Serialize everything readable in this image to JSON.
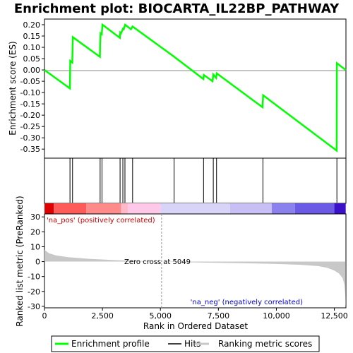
{
  "chart_data": {
    "type": "line",
    "title": "Enrichment plot: BIOCARTA_IL22BP_PATHWAY",
    "top_panel": {
      "ylabel": "Enrichment score (ES)",
      "ylim": [
        -0.39,
        0.225
      ],
      "yticks": [
        "0.20",
        "0.15",
        "0.10",
        "0.05",
        "0.00",
        "-0.05",
        "-0.10",
        "-0.15",
        "-0.20",
        "-0.25",
        "-0.30",
        "-0.35"
      ],
      "ytick_values": [
        0.2,
        0.15,
        0.1,
        0.05,
        0.0,
        -0.05,
        -0.1,
        -0.15,
        -0.2,
        -0.25,
        -0.3,
        -0.35
      ],
      "series": [
        {
          "name": "Enrichment profile",
          "color": "#00ff00",
          "x": [
            0,
            1100,
            1110,
            1200,
            1220,
            2390,
            2400,
            2420,
            2470,
            2500,
            3250,
            3270,
            3300,
            3390,
            3420,
            3480,
            3500,
            3730,
            3800,
            5600,
            5620,
            6850,
            6870,
            7250,
            7280,
            7400,
            7430,
            9400,
            9430,
            12600,
            12610,
            12990
          ],
          "y": [
            0.0,
            -0.082,
            0.04,
            0.033,
            0.145,
            0.058,
            0.11,
            0.162,
            0.158,
            0.2,
            0.142,
            0.165,
            0.162,
            0.183,
            0.18,
            0.2,
            0.198,
            0.18,
            0.192,
            0.058,
            0.056,
            -0.04,
            -0.022,
            -0.05,
            -0.02,
            -0.035,
            -0.015,
            -0.165,
            -0.112,
            -0.357,
            0.03,
            0.0
          ]
        }
      ],
      "hits": [
        1100,
        1210,
        2400,
        2480,
        3260,
        3380,
        3470,
        3800,
        5590,
        6860,
        7280,
        7420,
        9420,
        12610
      ]
    },
    "bottom_panel": {
      "ylabel": "Ranked list metric (PreRanked)",
      "xlabel": "Rank in Ordered Dataset",
      "ylim": [
        -31,
        32
      ],
      "yticks": [
        "30",
        "20",
        "10",
        "0",
        "-10",
        "-20",
        "-30"
      ],
      "ytick_values": [
        30,
        20,
        10,
        0,
        -10,
        -20,
        -30
      ],
      "xticks": [
        "0",
        "2,500",
        "5,000",
        "7,500",
        "10,000",
        "12,500"
      ],
      "xtick_values": [
        0,
        2500,
        5000,
        7500,
        10000,
        12500
      ],
      "zero_cross_label": "Zero cross at 5049",
      "zero_cross": 5049,
      "pos_label": "'na_pos' (positively correlated)",
      "neg_label": "'na_neg' (negatively correlated)",
      "metric_points": [
        [
          0,
          8
        ],
        [
          200,
          5.5
        ],
        [
          500,
          4.2
        ],
        [
          1000,
          3.0
        ],
        [
          2000,
          1.8
        ],
        [
          3000,
          1.0
        ],
        [
          4000,
          0.5
        ],
        [
          5049,
          0
        ],
        [
          6000,
          -0.4
        ],
        [
          7000,
          -0.7
        ],
        [
          8000,
          -0.9
        ],
        [
          9000,
          -1.2
        ],
        [
          10000,
          -1.6
        ],
        [
          11000,
          -2.1
        ],
        [
          11800,
          -3
        ],
        [
          12200,
          -4.2
        ],
        [
          12500,
          -6
        ],
        [
          12700,
          -8
        ],
        [
          12850,
          -11
        ],
        [
          12930,
          -15
        ],
        [
          12970,
          -22
        ],
        [
          12990,
          -30
        ]
      ]
    },
    "xlim": [
      0,
      13000
    ],
    "legend": [
      "Enrichment profile",
      "Hits",
      "Ranking metric scores"
    ],
    "legend_placement": "bottom",
    "colors": {
      "profile": "#00ff00",
      "hits": "#000000",
      "metric_fill": "#c8c8c8",
      "pos_text": "#cc0000",
      "neg_text": "#0000cc"
    },
    "heatmap_segments": [
      {
        "end": 400,
        "color": "#dd0000"
      },
      {
        "end": 1800,
        "color": "#ff5a5a"
      },
      {
        "end": 3300,
        "color": "#ff8a8a"
      },
      {
        "end": 3600,
        "color": "#ffb8c8"
      },
      {
        "end": 5000,
        "color": "#ffc8e8"
      },
      {
        "end": 8000,
        "color": "#d8d4f8"
      },
      {
        "end": 9800,
        "color": "#c8c0f4"
      },
      {
        "end": 10800,
        "color": "#8a80ee"
      },
      {
        "end": 12500,
        "color": "#6b5ae6"
      },
      {
        "end": 13000,
        "color": "#3a10c8"
      }
    ]
  }
}
